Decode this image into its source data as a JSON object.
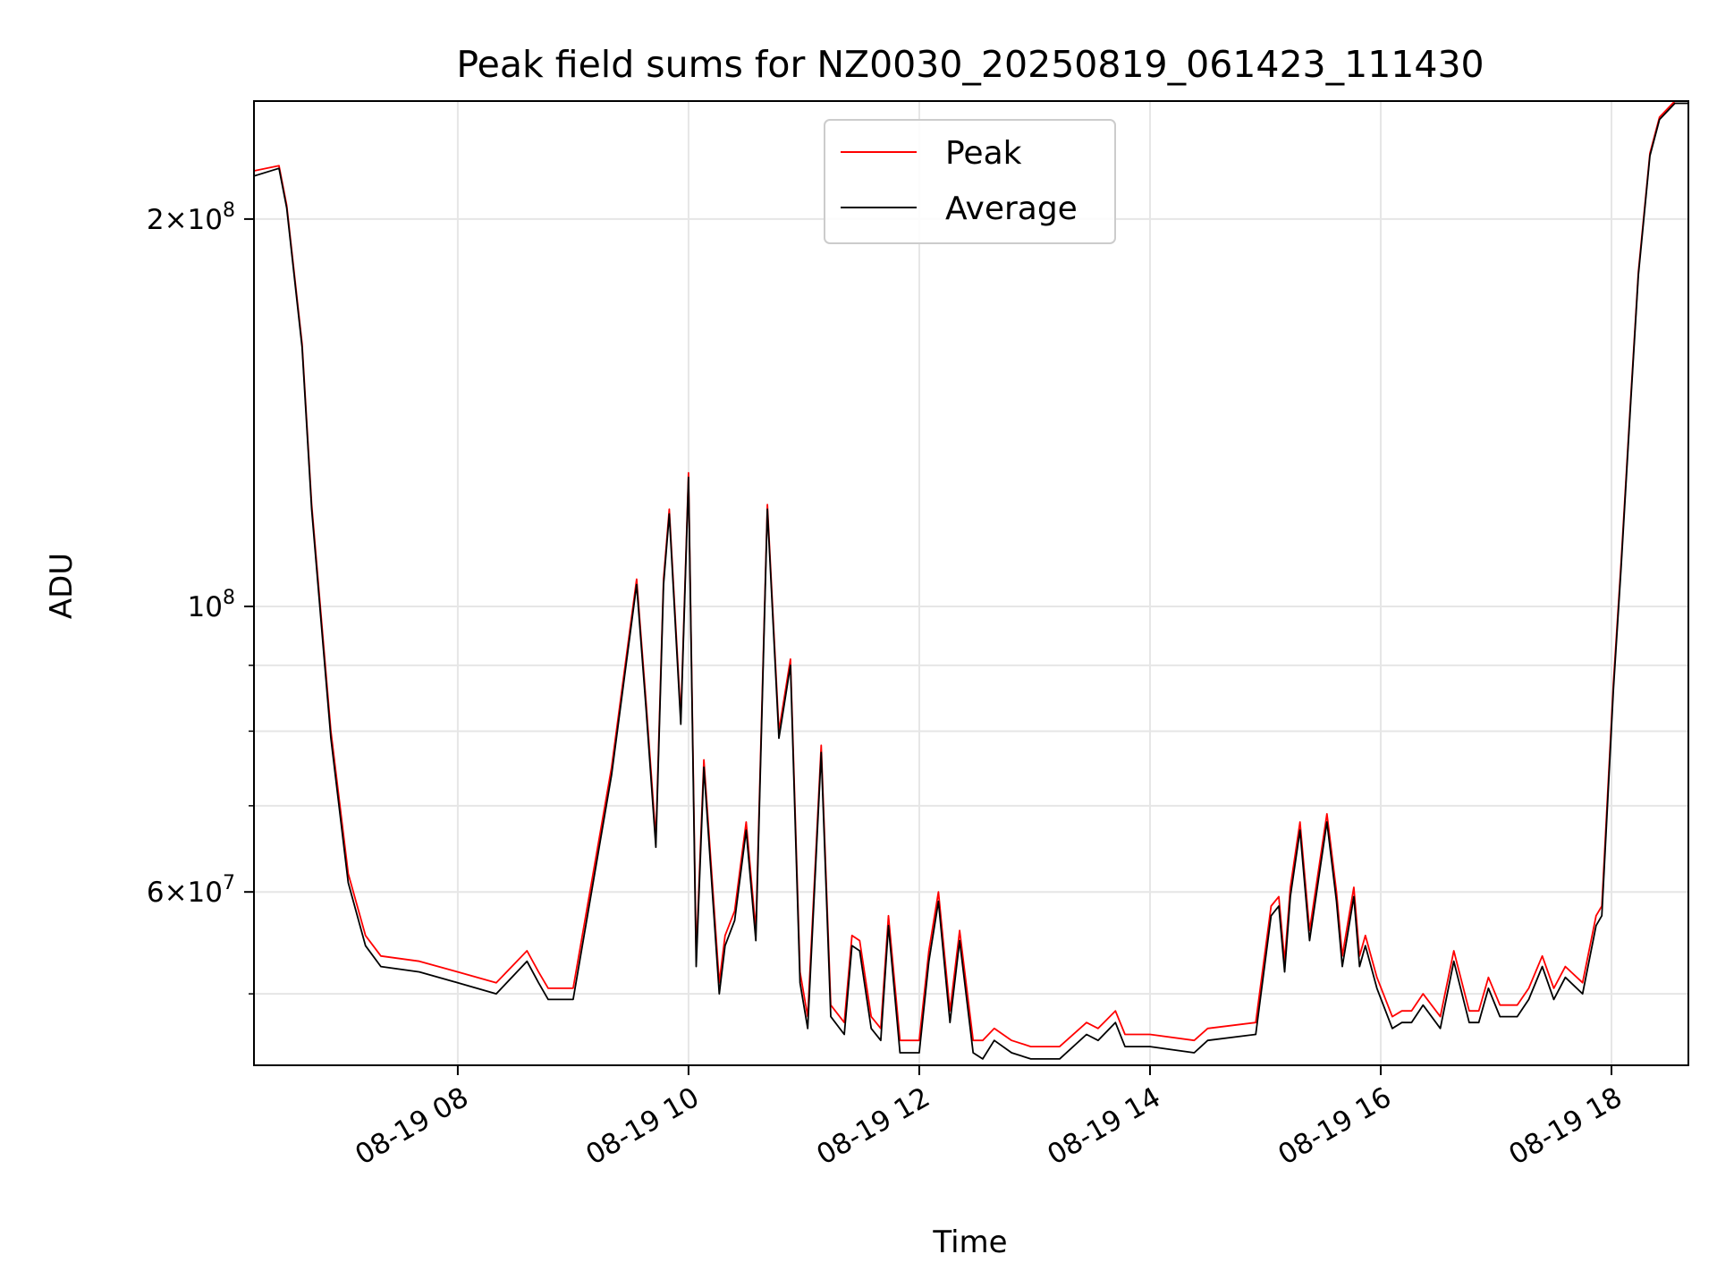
{
  "chart_data": {
    "type": "line",
    "title": "Peak field sums for NZ0030_20250819_061423_111430",
    "xlabel": "Time",
    "ylabel": "ADU",
    "yscale": "log",
    "ylim": [
      44000000,
      247000000
    ],
    "xlim": [
      "2025-08-19 06:14",
      "2025-08-19 18:40"
    ],
    "grid": true,
    "legend_position": "upper center",
    "x_ticks": [
      {
        "value": "2025-08-19 08:00",
        "label": "08-19 08"
      },
      {
        "value": "2025-08-19 10:00",
        "label": "08-19 10"
      },
      {
        "value": "2025-08-19 12:00",
        "label": "08-19 12"
      },
      {
        "value": "2025-08-19 14:00",
        "label": "08-19 14"
      },
      {
        "value": "2025-08-19 16:00",
        "label": "08-19 16"
      },
      {
        "value": "2025-08-19 18:00",
        "label": "08-19 18"
      }
    ],
    "y_major_ticks": [
      {
        "value": 200000000,
        "mantissa": "2",
        "exponent": "8"
      },
      {
        "value": 100000000,
        "mantissa": "",
        "exponent": "8"
      },
      {
        "value": 60000000,
        "mantissa": "6",
        "exponent": "7"
      }
    ],
    "y_minor_ticks": [
      50000000,
      70000000,
      80000000,
      90000000
    ],
    "x": [
      "2025-08-19 06:14",
      "2025-08-19 06:27",
      "2025-08-19 06:31",
      "2025-08-19 06:39",
      "2025-08-19 06:44",
      "2025-08-19 06:54",
      "2025-08-19 07:03",
      "2025-08-19 07:12",
      "2025-08-19 07:20",
      "2025-08-19 07:40",
      "2025-08-19 08:00",
      "2025-08-19 08:20",
      "2025-08-19 08:36",
      "2025-08-19 08:42",
      "2025-08-19 08:47",
      "2025-08-19 09:00",
      "2025-08-19 09:20",
      "2025-08-19 09:33",
      "2025-08-19 09:38",
      "2025-08-19 09:43",
      "2025-08-19 09:47",
      "2025-08-19 09:50",
      "2025-08-19 09:56",
      "2025-08-19 10:00",
      "2025-08-19 10:04",
      "2025-08-19 10:08",
      "2025-08-19 10:16",
      "2025-08-19 10:19",
      "2025-08-19 10:24",
      "2025-08-19 10:30",
      "2025-08-19 10:35",
      "2025-08-19 10:41",
      "2025-08-19 10:47",
      "2025-08-19 10:53",
      "2025-08-19 10:58",
      "2025-08-19 11:02",
      "2025-08-19 11:09",
      "2025-08-19 11:14",
      "2025-08-19 11:21",
      "2025-08-19 11:25",
      "2025-08-19 11:29",
      "2025-08-19 11:35",
      "2025-08-19 11:40",
      "2025-08-19 11:44",
      "2025-08-19 11:50",
      "2025-08-19 12:00",
      "2025-08-19 12:05",
      "2025-08-19 12:10",
      "2025-08-19 12:16",
      "2025-08-19 12:21",
      "2025-08-19 12:28",
      "2025-08-19 12:33",
      "2025-08-19 12:39",
      "2025-08-19 12:48",
      "2025-08-19 12:58",
      "2025-08-19 13:13",
      "2025-08-19 13:27",
      "2025-08-19 13:33",
      "2025-08-19 13:42",
      "2025-08-19 13:47",
      "2025-08-19 14:00",
      "2025-08-19 14:23",
      "2025-08-19 14:30",
      "2025-08-19 14:55",
      "2025-08-19 15:03",
      "2025-08-19 15:07",
      "2025-08-19 15:10",
      "2025-08-19 15:13",
      "2025-08-19 15:18",
      "2025-08-19 15:23",
      "2025-08-19 15:32",
      "2025-08-19 15:37",
      "2025-08-19 15:40",
      "2025-08-19 15:46",
      "2025-08-19 15:49",
      "2025-08-19 15:52",
      "2025-08-19 15:58",
      "2025-08-19 16:06",
      "2025-08-19 16:11",
      "2025-08-19 16:16",
      "2025-08-19 16:22",
      "2025-08-19 16:31",
      "2025-08-19 16:38",
      "2025-08-19 16:46",
      "2025-08-19 16:51",
      "2025-08-19 16:56",
      "2025-08-19 17:02",
      "2025-08-19 17:11",
      "2025-08-19 17:17",
      "2025-08-19 17:24",
      "2025-08-19 17:30",
      "2025-08-19 17:36",
      "2025-08-19 17:45",
      "2025-08-19 17:52",
      "2025-08-19 17:55",
      "2025-08-19 18:01",
      "2025-08-19 18:05",
      "2025-08-19 18:10",
      "2025-08-19 18:14",
      "2025-08-19 18:20",
      "2025-08-19 18:25",
      "2025-08-19 18:33",
      "2025-08-19 18:40"
    ],
    "series": [
      {
        "name": "Peak",
        "color": "#ff0000",
        "values": [
          218000000,
          220000000,
          205000000,
          160000000,
          120000000,
          80000000,
          62000000,
          55500000,
          53500000,
          53000000,
          52000000,
          51000000,
          54000000,
          52000000,
          50500000,
          50500000,
          75000000,
          105000000,
          84000000,
          66000000,
          105000000,
          119000000,
          82000000,
          127000000,
          53500000,
          76000000,
          51000000,
          55500000,
          58000000,
          68000000,
          56000000,
          120000000,
          80000000,
          91000000,
          52000000,
          48000000,
          78000000,
          49000000,
          47500000,
          55500000,
          55000000,
          48000000,
          47000000,
          57500000,
          46000000,
          46000000,
          54000000,
          60000000,
          48500000,
          56000000,
          46000000,
          46000000,
          47000000,
          46000000,
          45500000,
          45500000,
          47500000,
          47000000,
          48500000,
          46500000,
          46500000,
          46000000,
          47000000,
          47500000,
          58500000,
          59500000,
          53000000,
          60500000,
          68000000,
          56000000,
          69000000,
          60000000,
          53500000,
          60500000,
          53500000,
          55500000,
          51500000,
          48000000,
          48500000,
          48500000,
          50000000,
          48000000,
          54000000,
          48500000,
          48500000,
          51500000,
          49000000,
          49000000,
          50500000,
          53500000,
          50500000,
          52500000,
          51000000,
          57500000,
          58500000,
          87000000,
          108000000,
          145000000,
          182000000,
          225000000,
          240000000,
          247000000,
          247000000
        ]
      },
      {
        "name": "Average",
        "color": "#000000",
        "values": [
          216000000,
          219000000,
          204000000,
          159000000,
          119000000,
          79000000,
          61000000,
          54500000,
          52500000,
          52000000,
          51000000,
          50000000,
          53000000,
          51000000,
          49500000,
          49500000,
          74000000,
          104000000,
          83000000,
          65000000,
          104000000,
          118000000,
          81000000,
          126000000,
          52500000,
          75000000,
          50000000,
          54500000,
          57000000,
          67000000,
          55000000,
          119000000,
          79000000,
          90000000,
          51000000,
          47000000,
          77000000,
          48000000,
          46500000,
          54500000,
          54000000,
          47000000,
          46000000,
          56500000,
          45000000,
          45000000,
          53000000,
          59000000,
          47500000,
          55000000,
          45000000,
          44500000,
          46000000,
          45000000,
          44500000,
          44500000,
          46500000,
          46000000,
          47500000,
          45500000,
          45500000,
          45000000,
          46000000,
          46500000,
          57500000,
          58500000,
          52000000,
          59500000,
          67000000,
          55000000,
          68000000,
          59000000,
          52500000,
          59500000,
          52500000,
          54500000,
          50500000,
          47000000,
          47500000,
          47500000,
          49000000,
          47000000,
          53000000,
          47500000,
          47500000,
          50500000,
          48000000,
          48000000,
          49500000,
          52500000,
          49500000,
          51500000,
          50000000,
          56500000,
          57500000,
          86000000,
          107000000,
          144000000,
          181000000,
          224000000,
          239000000,
          246000000,
          246000000
        ]
      }
    ]
  }
}
